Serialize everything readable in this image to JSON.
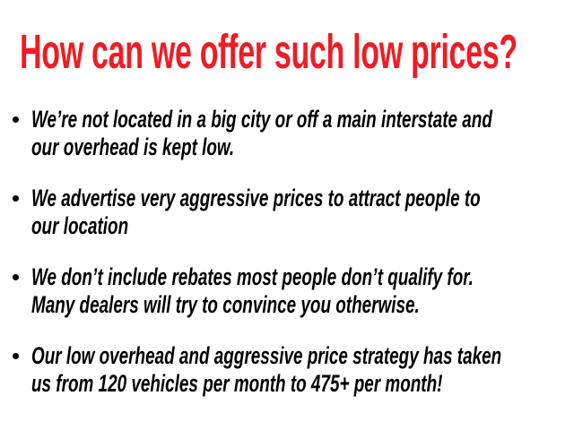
{
  "title": "How can we offer such low prices?",
  "bullets": [
    {
      "lines": [
        "We’re not located in a big city or off a main interstate and",
        "our overhead is kept low."
      ]
    },
    {
      "lines": [
        "We advertise very aggressive prices to attract people to",
        "our location"
      ]
    },
    {
      "lines": [
        "We don’t include rebates most people don’t qualify for.",
        "Many dealers will try to convince you otherwise."
      ]
    },
    {
      "lines": [
        "Our low overhead and aggressive price strategy has taken",
        "us from 120 vehicles per month to 475+ per month!"
      ]
    }
  ],
  "colors": {
    "title": "#ee1c24",
    "text": "#000000"
  }
}
